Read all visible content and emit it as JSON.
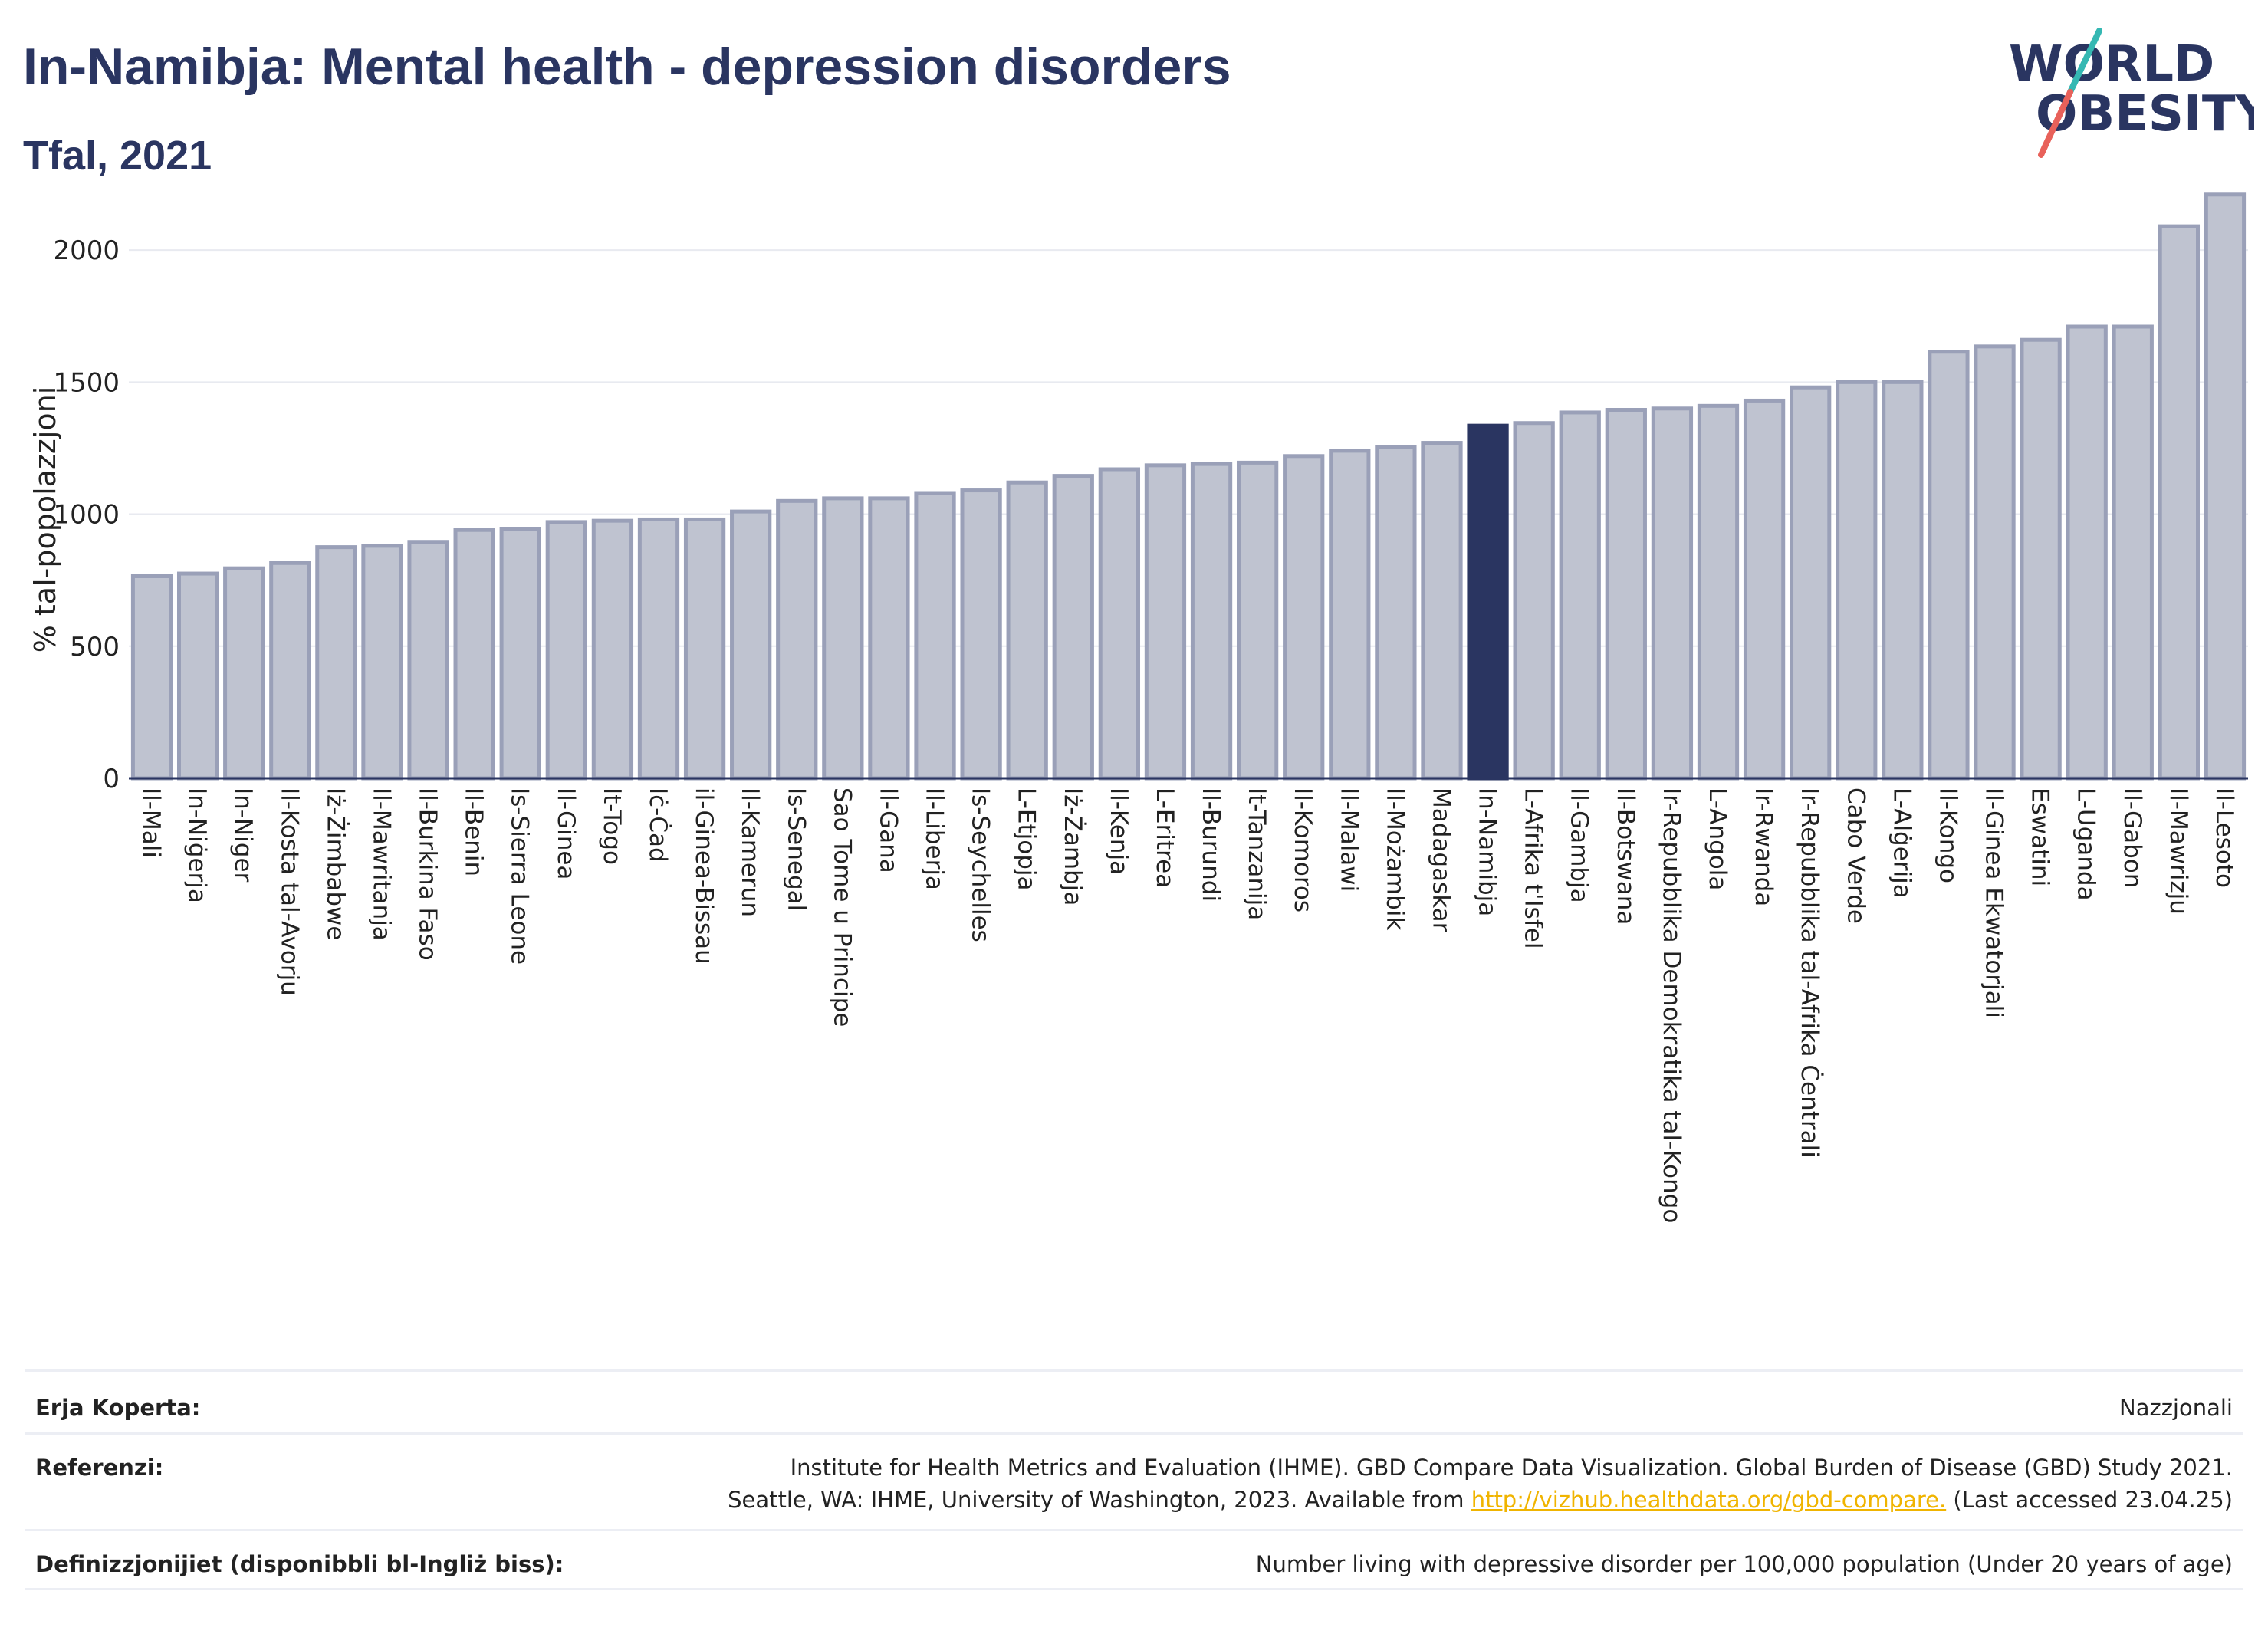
{
  "header": {
    "title": "In-Namibja: Mental health - depression disorders",
    "subtitle": "Tfal, 2021"
  },
  "logo": {
    "line1": "WORLD",
    "line2": "OBESITY",
    "colors": {
      "text": "#2a3561",
      "slash_teal": "#35b8b3",
      "slash_red": "#e8615a"
    }
  },
  "colors": {
    "bar": "#bfc3d0",
    "bar_stroke": "#9aa0b8",
    "highlight": "#2a3561",
    "grid": "#e8eaf0"
  },
  "chart_data": {
    "type": "bar",
    "title": "In-Namibja: Mental health - depression disorders",
    "subtitle": "Tfal, 2021",
    "xlabel": "",
    "ylabel": "% tal-popolazzjoni",
    "ylim": [
      0,
      2250
    ],
    "yticks": [
      0,
      500,
      1000,
      1500,
      2000
    ],
    "grid": true,
    "highlight": "In-Namibja",
    "categories": [
      "Il-Mali",
      "In-Niġerja",
      "In-Niger",
      "Il-Kosta tal-Avorju",
      "Iż-Żimbabwe",
      "Il-Mawritanja",
      "Il-Burkina Faso",
      "Il-Benin",
      "Is-Sierra Leone",
      "Il-Ginea",
      "It-Togo",
      "Iċ-Ċad",
      "il-Ginea-Bissau",
      "Il-Kamerun",
      "Is-Senegal",
      "Sao Tome u Principe",
      "Il-Gana",
      "Il-Liberja",
      "Is-Seychelles",
      "L-Etjopja",
      "Iż-Żambja",
      "Il-Kenja",
      "L-Eritrea",
      "Il-Burundi",
      "It-Tanzanija",
      "Il-Komoros",
      "Il-Malawi",
      "Il-Możambik",
      "Madagaskar",
      "In-Namibja",
      "L-Afrika t'Isfel",
      "Il-Gambja",
      "Il-Botswana",
      "Ir-Repubblika Demokratika tal-Kongo",
      "L-Angola",
      "Ir-Rwanda",
      "Ir-Repubblika tal-Afrika Ċentrali",
      "Cabo Verde",
      "L-Alġerija",
      "Il-Kongo",
      "Il-Ginea Ekwatorjali",
      "Eswatini",
      "L-Uganda",
      "Il-Gabon",
      "Il-Mawrizju",
      "Il-Lesoto"
    ],
    "values": [
      765,
      775,
      795,
      815,
      875,
      880,
      895,
      940,
      945,
      970,
      975,
      980,
      980,
      1010,
      1050,
      1060,
      1060,
      1080,
      1090,
      1120,
      1145,
      1170,
      1185,
      1190,
      1195,
      1220,
      1240,
      1255,
      1270,
      1335,
      1345,
      1385,
      1395,
      1400,
      1410,
      1430,
      1480,
      1500,
      1500,
      1615,
      1635,
      1660,
      1710,
      1710,
      2090,
      2210
    ]
  },
  "footer": {
    "coverage_label": "Erja Koperta:",
    "coverage_value": "Nazzjonali",
    "references_label": "Referenzi:",
    "references_line1": "Institute for Health Metrics and Evaluation (IHME). GBD Compare Data Visualization. Global Burden of Disease (GBD) Study 2021.",
    "references_line2_prefix": "Seattle, WA: IHME, University of Washington, 2023. Available from ",
    "references_link": "http://vizhub.healthdata.org/gbd-compare.",
    "references_suffix": " (Last accessed 23.04.25)",
    "definitions_label": "Definizzjonijiet (disponibbli bl-Ingliż biss):",
    "definitions_value": "Number living with depressive disorder per 100,000 population (Under 20 years of age)"
  }
}
